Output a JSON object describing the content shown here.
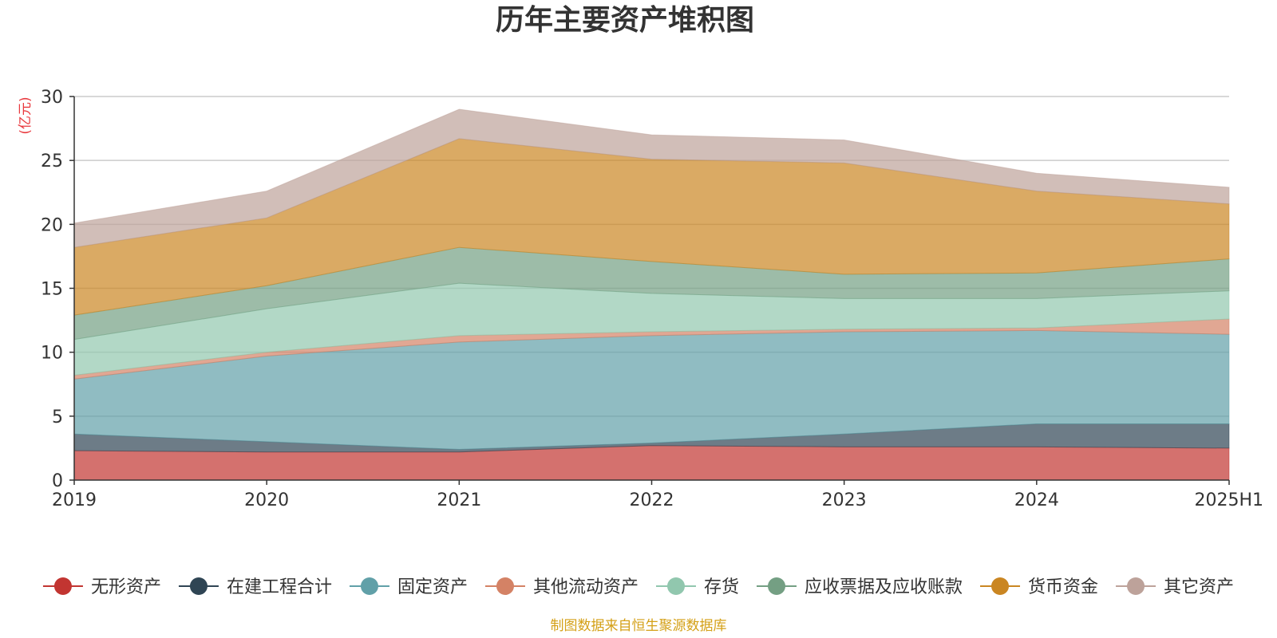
{
  "chart_data": {
    "type": "area",
    "stacked": true,
    "title": "历年主要资产堆积图",
    "unit_label": "(亿元)",
    "source": "制图数据来自恒生聚源数据库",
    "categories": [
      "2019",
      "2020",
      "2021",
      "2022",
      "2023",
      "2024",
      "2025H1"
    ],
    "ylim": [
      0,
      30
    ],
    "yticks": [
      0,
      5,
      10,
      15,
      20,
      25,
      30
    ],
    "grid": true,
    "legend_position": "bottom",
    "series": [
      {
        "name": "无形资产",
        "color": "#c23531",
        "values": [
          2.3,
          2.2,
          2.2,
          2.7,
          2.6,
          2.6,
          2.5
        ]
      },
      {
        "name": "在建工程合计",
        "color": "#2f4554",
        "values": [
          1.3,
          0.8,
          0.2,
          0.2,
          1.0,
          1.8,
          1.9
        ]
      },
      {
        "name": "固定资产",
        "color": "#61a0a8",
        "values": [
          4.3,
          6.7,
          8.4,
          8.4,
          8.0,
          7.3,
          7.0
        ]
      },
      {
        "name": "其他流动资产",
        "color": "#d48265",
        "values": [
          0.3,
          0.3,
          0.5,
          0.3,
          0.2,
          0.2,
          1.2
        ]
      },
      {
        "name": "存货",
        "color": "#91c7ae",
        "values": [
          2.8,
          3.4,
          4.1,
          3.0,
          2.4,
          2.3,
          2.2
        ]
      },
      {
        "name": "应收票据及应收账款",
        "color": "#749f83",
        "values": [
          1.9,
          1.8,
          2.8,
          2.5,
          1.9,
          2.0,
          2.5
        ]
      },
      {
        "name": "货币资金",
        "color": "#ca8622",
        "values": [
          5.3,
          5.3,
          8.5,
          8.0,
          8.7,
          6.4,
          4.3
        ]
      },
      {
        "name": "其它资产",
        "color": "#bda29a",
        "values": [
          1.9,
          2.1,
          2.3,
          1.9,
          1.8,
          1.4,
          1.3
        ]
      }
    ]
  }
}
